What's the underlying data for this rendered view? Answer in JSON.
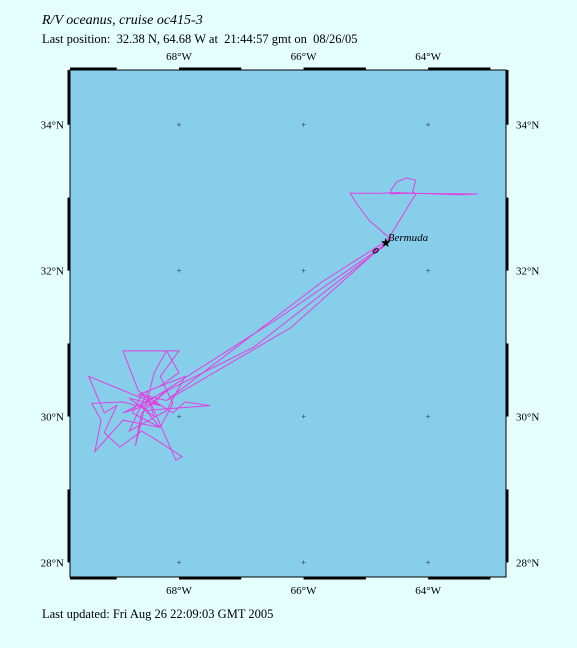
{
  "header": {
    "title": "R/V oceanus, cruise oc415-3",
    "subtitle": "Last position:  32.38 N, 64.68 W at  21:44:57 gmt on  08/26/05"
  },
  "footer": {
    "updated": "Last updated: Fri Aug 26 22:09:03 GMT 2005"
  },
  "map": {
    "lon_range": [
      -69.75,
      -62.75
    ],
    "lat_range": [
      27.8,
      34.75
    ],
    "water_color": "#87ceeb",
    "track_color": "#e040e0",
    "lon_ticks": [
      {
        "value": -68,
        "label": "68°W"
      },
      {
        "value": -66,
        "label": "66°W"
      },
      {
        "value": -64,
        "label": "64°W"
      }
    ],
    "lat_ticks": [
      {
        "value": 34,
        "label": "34°N"
      },
      {
        "value": 32,
        "label": "32°N"
      },
      {
        "value": 30,
        "label": "30°N"
      },
      {
        "value": 28,
        "label": "28°N"
      }
    ],
    "place": {
      "name": "Bermuda",
      "lon": -64.68,
      "lat": 32.38
    },
    "last_position": {
      "lon": -64.68,
      "lat": 32.38,
      "marker": "star-icon"
    },
    "track": [
      [
        -64.68,
        32.38
      ],
      [
        -64.75,
        32.3
      ],
      [
        -64.9,
        32.26
      ],
      [
        -64.75,
        32.3
      ],
      [
        -64.68,
        32.38
      ],
      [
        -64.6,
        32.43
      ],
      [
        -64.95,
        32.69
      ],
      [
        -65.15,
        32.92
      ],
      [
        -65.25,
        33.06
      ],
      [
        -64.98,
        33.06
      ],
      [
        -64.75,
        33.06
      ],
      [
        -64.5,
        33.07
      ],
      [
        -63.5,
        33.04
      ],
      [
        -63.2,
        33.05
      ],
      [
        -64.4,
        33.06
      ],
      [
        -64.6,
        33.05
      ],
      [
        -64.6,
        33.1
      ],
      [
        -64.5,
        33.22
      ],
      [
        -64.35,
        33.27
      ],
      [
        -64.2,
        33.24
      ],
      [
        -64.25,
        33.08
      ],
      [
        -64.2,
        33.05
      ],
      [
        -64.68,
        32.38
      ],
      [
        -66.2,
        31.22
      ],
      [
        -68.2,
        30.22
      ],
      [
        -68.6,
        30.3
      ],
      [
        -68.75,
        30.05
      ],
      [
        -68.3,
        29.85
      ],
      [
        -68.6,
        30.15
      ],
      [
        -66.4,
        31.35
      ],
      [
        -64.65,
        32.38
      ],
      [
        -66.8,
        30.95
      ],
      [
        -68.9,
        30.05
      ],
      [
        -68.35,
        30.2
      ],
      [
        -68.65,
        30.3
      ],
      [
        -67.9,
        30.55
      ],
      [
        -68.2,
        30.08
      ],
      [
        -68.8,
        29.8
      ],
      [
        -68.5,
        30.35
      ],
      [
        -68.3,
        30.42
      ],
      [
        -68.0,
        30.6
      ],
      [
        -68.2,
        30.9
      ],
      [
        -68.4,
        30.6
      ],
      [
        -68.55,
        30.08
      ],
      [
        -68.3,
        30.1
      ],
      [
        -67.5,
        30.15
      ],
      [
        -67.9,
        30.2
      ],
      [
        -68.1,
        30.05
      ],
      [
        -68.65,
        30.35
      ],
      [
        -68.9,
        30.9
      ],
      [
        -68.0,
        30.9
      ],
      [
        -68.3,
        30.55
      ],
      [
        -68.1,
        30.18
      ],
      [
        -68.3,
        29.85
      ],
      [
        -68.9,
        29.95
      ],
      [
        -69.35,
        29.52
      ],
      [
        -69.25,
        29.95
      ],
      [
        -69.4,
        30.18
      ],
      [
        -68.9,
        30.2
      ],
      [
        -68.55,
        30.12
      ],
      [
        -68.7,
        29.6
      ],
      [
        -68.6,
        30.05
      ],
      [
        -68.2,
        30.35
      ],
      [
        -68.45,
        30.18
      ],
      [
        -68.05,
        29.4
      ],
      [
        -67.95,
        29.45
      ],
      [
        -68.4,
        29.7
      ],
      [
        -68.6,
        29.8
      ],
      [
        -68.95,
        29.58
      ],
      [
        -69.2,
        29.78
      ],
      [
        -69.0,
        30.15
      ],
      [
        -69.2,
        30.05
      ],
      [
        -69.45,
        30.55
      ],
      [
        -68.3,
        30.15
      ],
      [
        -68.8,
        30.25
      ],
      [
        -68.4,
        30.0
      ],
      [
        -68.5,
        30.28
      ],
      [
        -68.2,
        30.22
      ],
      [
        -65.7,
        31.85
      ],
      [
        -64.72,
        32.38
      ],
      [
        -64.68,
        32.38
      ]
    ]
  }
}
